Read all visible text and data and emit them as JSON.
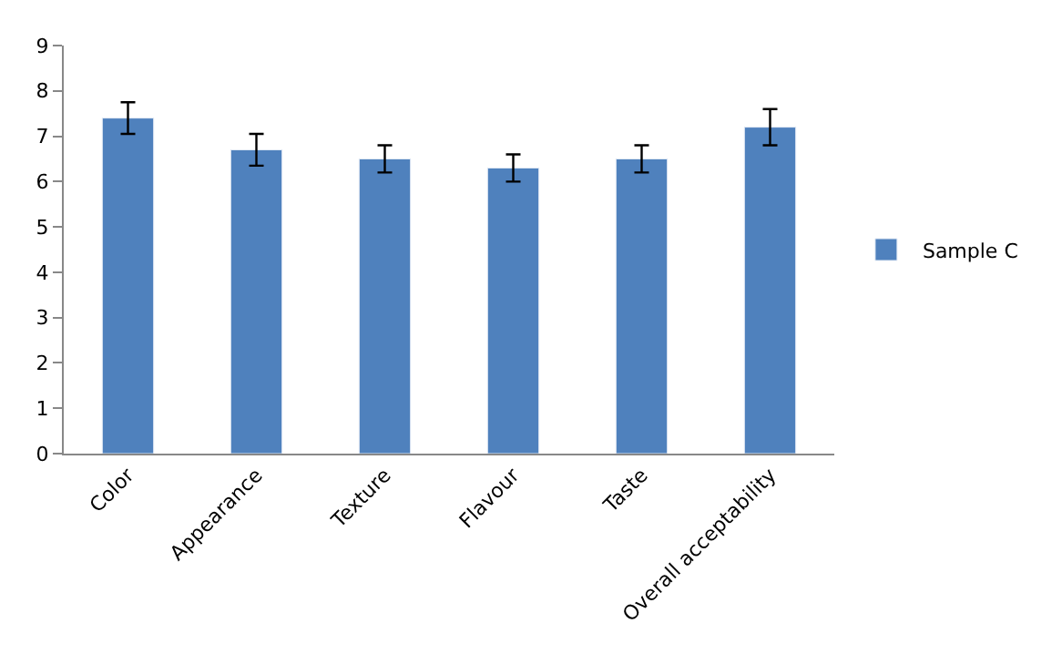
{
  "chart_data": {
    "type": "bar",
    "categories": [
      "Color",
      "Appearance",
      "Texture",
      "Flavour",
      "Taste",
      "Overall acceptability"
    ],
    "series": [
      {
        "name": "Sample C",
        "color": "#4f81bd",
        "values": [
          7.4,
          6.7,
          6.5,
          6.3,
          6.5,
          7.2
        ],
        "errors": [
          0.35,
          0.35,
          0.3,
          0.3,
          0.3,
          0.4
        ]
      }
    ],
    "ylim": [
      0,
      9
    ],
    "yticks": [
      0,
      1,
      2,
      3,
      4,
      5,
      6,
      7,
      8,
      9
    ],
    "legend": "right"
  }
}
